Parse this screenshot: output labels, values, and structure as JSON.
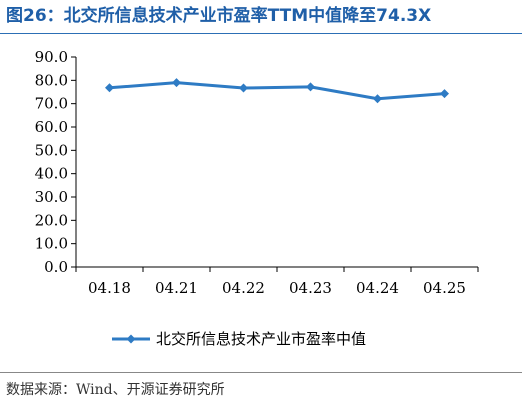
{
  "header": {
    "title": "图26：北交所信息技术产业市盈率TTM中值降至74.3X"
  },
  "footer": {
    "source": "数据来源：Wind、开源证券研究所"
  },
  "chart_data": {
    "type": "line",
    "title": "",
    "xlabel": "",
    "ylabel": "",
    "categories": [
      "04.18",
      "04.21",
      "04.22",
      "04.23",
      "04.24",
      "04.25"
    ],
    "ylim": [
      0,
      90
    ],
    "yticks": [
      "0.0",
      "10.0",
      "20.0",
      "30.0",
      "40.0",
      "50.0",
      "60.0",
      "70.0",
      "80.0",
      "90.0"
    ],
    "grid": false,
    "legend_position": "bottom",
    "colors": {
      "series": "#2e7bc4",
      "axis": "#000000"
    },
    "series": [
      {
        "name": "北交所信息技术产业市盈率中值",
        "values": [
          76.8,
          79.0,
          76.7,
          77.2,
          72.1,
          74.3
        ]
      }
    ]
  }
}
